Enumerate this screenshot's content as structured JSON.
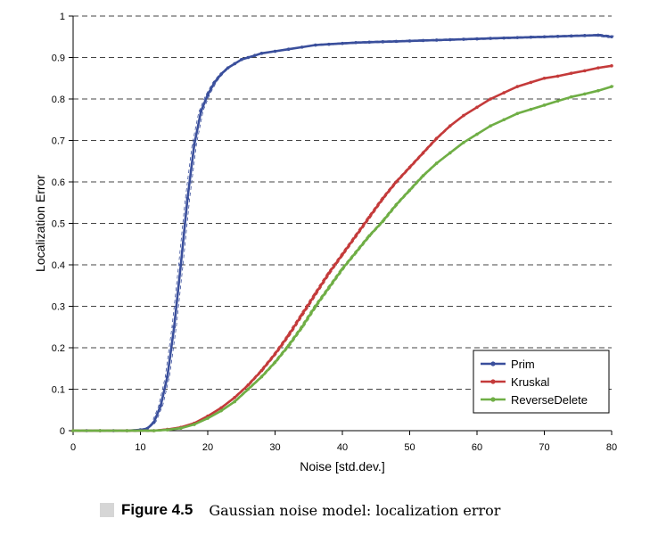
{
  "chart_data": {
    "type": "line",
    "xlabel": "Noise [std.dev.]",
    "ylabel": "Localization Error",
    "xlim": [
      0,
      80
    ],
    "ylim": [
      0,
      1
    ],
    "x_ticks": [
      0,
      10,
      20,
      30,
      40,
      50,
      60,
      70,
      80
    ],
    "y_ticks": [
      0,
      0.1,
      0.2,
      0.3,
      0.4,
      0.5,
      0.6,
      0.7,
      0.8,
      0.9,
      1
    ],
    "y_tick_labels": [
      "0",
      "0.1",
      "0.2",
      "0.3",
      "0.4",
      "0.5",
      "0.6",
      "0.7",
      "0.8",
      "0.9",
      "1"
    ],
    "grid": "horizontal-dashed",
    "legend_position": "bottom-right",
    "series": [
      {
        "name": "Prim",
        "color": "#3a4f9c",
        "x": [
          0,
          2,
          4,
          6,
          8,
          10,
          11,
          12,
          13,
          14,
          15,
          16,
          17,
          18,
          19,
          20,
          21,
          22,
          23,
          24,
          25,
          26,
          27,
          28,
          30,
          32,
          34,
          36,
          38,
          40,
          42,
          44,
          46,
          48,
          50,
          52,
          54,
          56,
          58,
          60,
          62,
          64,
          66,
          68,
          70,
          72,
          74,
          76,
          78,
          80
        ],
        "y": [
          0,
          0,
          0,
          0,
          0,
          0.002,
          0.005,
          0.02,
          0.06,
          0.13,
          0.25,
          0.4,
          0.56,
          0.69,
          0.77,
          0.81,
          0.84,
          0.86,
          0.875,
          0.885,
          0.895,
          0.9,
          0.905,
          0.91,
          0.915,
          0.92,
          0.925,
          0.93,
          0.932,
          0.934,
          0.936,
          0.937,
          0.938,
          0.939,
          0.94,
          0.941,
          0.942,
          0.943,
          0.944,
          0.945,
          0.946,
          0.947,
          0.948,
          0.949,
          0.95,
          0.951,
          0.952,
          0.953,
          0.954,
          0.95
        ]
      },
      {
        "name": "Kruskal",
        "color": "#c43a3a",
        "x": [
          0,
          4,
          8,
          12,
          14,
          16,
          18,
          20,
          22,
          24,
          26,
          28,
          30,
          32,
          34,
          36,
          38,
          40,
          42,
          44,
          46,
          48,
          50,
          52,
          54,
          56,
          58,
          60,
          62,
          64,
          66,
          68,
          70,
          72,
          74,
          76,
          78,
          80
        ],
        "y": [
          0,
          0,
          0,
          0,
          0.003,
          0.008,
          0.018,
          0.035,
          0.055,
          0.08,
          0.11,
          0.145,
          0.185,
          0.23,
          0.28,
          0.33,
          0.38,
          0.425,
          0.47,
          0.515,
          0.56,
          0.6,
          0.635,
          0.67,
          0.705,
          0.735,
          0.76,
          0.78,
          0.8,
          0.815,
          0.83,
          0.84,
          0.85,
          0.855,
          0.862,
          0.868,
          0.875,
          0.88
        ]
      },
      {
        "name": "ReverseDelete",
        "color": "#6fae45",
        "x": [
          0,
          4,
          8,
          12,
          14,
          16,
          18,
          20,
          22,
          24,
          26,
          28,
          30,
          32,
          34,
          36,
          38,
          40,
          42,
          44,
          46,
          48,
          50,
          52,
          54,
          56,
          58,
          60,
          62,
          64,
          66,
          68,
          70,
          72,
          74,
          76,
          78,
          80
        ],
        "y": [
          0,
          0,
          0,
          0,
          0.002,
          0.006,
          0.015,
          0.03,
          0.048,
          0.07,
          0.1,
          0.13,
          0.165,
          0.205,
          0.25,
          0.3,
          0.345,
          0.39,
          0.43,
          0.47,
          0.505,
          0.545,
          0.58,
          0.615,
          0.645,
          0.67,
          0.695,
          0.715,
          0.735,
          0.75,
          0.765,
          0.775,
          0.785,
          0.795,
          0.805,
          0.812,
          0.82,
          0.83
        ]
      }
    ]
  },
  "caption": {
    "figure_number": "Figure 4.5",
    "text": "Gaussian noise model: localization error"
  }
}
